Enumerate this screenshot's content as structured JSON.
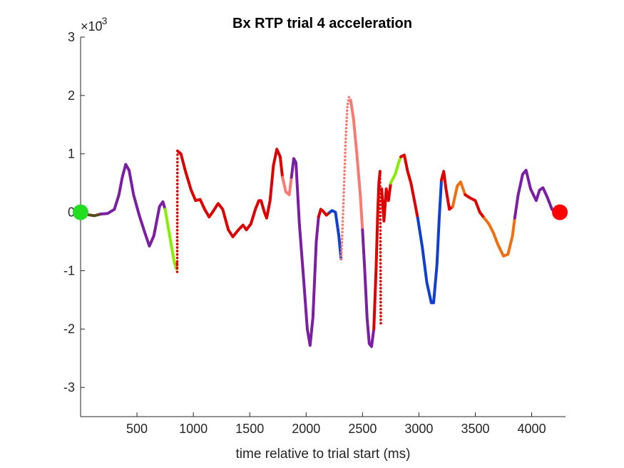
{
  "chart_data": {
    "type": "scatter",
    "title": "Bx  RTP trial 4 acceleration",
    "xlabel": "time relative to trial start (ms)",
    "ylabel": "",
    "y_exponent_label": "×10",
    "y_exponent_value": "-3",
    "y_scale_factor": 0.001,
    "xlim": [
      0,
      4300
    ],
    "ylim": [
      -3.5,
      3
    ],
    "x_ticks": [
      500,
      1000,
      1500,
      2000,
      2500,
      3000,
      3500,
      4000
    ],
    "x_tick_labels": [
      "500",
      "1000",
      "1500",
      "2000",
      "2500",
      "3000",
      "3500",
      "4000"
    ],
    "y_ticks": [
      3,
      2,
      1,
      0,
      -1,
      -2,
      -3
    ],
    "y_tick_labels": [
      "3",
      "2",
      "1",
      "0",
      "-1",
      "-2",
      "-3"
    ],
    "grid": false,
    "legend": "none",
    "colors": {
      "purple": "#7b1fa2",
      "brown": "#5b4a1a",
      "green": "#88ee00",
      "red": "#dd0000",
      "salmon": "#f77b72",
      "blue": "#1040d0",
      "orange": "#f07010",
      "start_marker": "#22dd22",
      "end_marker": "#ff0000"
    },
    "segments": [
      {
        "color": "brown",
        "dotted": false,
        "points": [
          [
            0,
            0.0
          ],
          [
            60,
            -0.04
          ],
          [
            120,
            -0.06
          ],
          [
            180,
            -0.03
          ]
        ]
      },
      {
        "color": "purple",
        "dotted": false,
        "points": [
          [
            180,
            -0.03
          ],
          [
            240,
            -0.02
          ],
          [
            300,
            0.05
          ],
          [
            340,
            0.3
          ],
          [
            370,
            0.6
          ],
          [
            400,
            0.82
          ],
          [
            430,
            0.72
          ],
          [
            470,
            0.3
          ],
          [
            520,
            -0.05
          ],
          [
            570,
            -0.35
          ],
          [
            610,
            -0.58
          ],
          [
            650,
            -0.4
          ],
          [
            700,
            0.1
          ],
          [
            730,
            0.18
          ],
          [
            750,
            0.05
          ]
        ]
      },
      {
        "color": "green",
        "dotted": false,
        "points": [
          [
            750,
            0.05
          ],
          [
            790,
            -0.4
          ],
          [
            830,
            -0.85
          ],
          [
            850,
            -0.97
          ]
        ]
      },
      {
        "color": "red",
        "dotted": true,
        "points": [
          [
            855,
            -0.88
          ],
          [
            857,
            -1.02
          ],
          [
            858,
            0.05
          ],
          [
            859,
            0.92
          ],
          [
            860,
            1.05
          ]
        ]
      },
      {
        "color": "red",
        "dotted": false,
        "points": [
          [
            860,
            1.05
          ],
          [
            890,
            1.0
          ],
          [
            930,
            0.7
          ],
          [
            980,
            0.38
          ],
          [
            1020,
            0.2
          ],
          [
            1060,
            0.22
          ],
          [
            1100,
            0.05
          ],
          [
            1140,
            -0.08
          ],
          [
            1170,
            0.0
          ],
          [
            1220,
            0.15
          ],
          [
            1260,
            0.05
          ],
          [
            1310,
            -0.3
          ],
          [
            1350,
            -0.42
          ],
          [
            1400,
            -0.3
          ],
          [
            1440,
            -0.22
          ],
          [
            1470,
            -0.3
          ],
          [
            1510,
            -0.2
          ],
          [
            1550,
            0.05
          ],
          [
            1580,
            0.2
          ],
          [
            1600,
            0.2
          ],
          [
            1630,
            0.0
          ],
          [
            1650,
            -0.1
          ],
          [
            1680,
            0.2
          ],
          [
            1710,
            0.8
          ],
          [
            1740,
            1.08
          ],
          [
            1770,
            0.95
          ],
          [
            1790,
            0.6
          ]
        ]
      },
      {
        "color": "salmon",
        "dotted": false,
        "points": [
          [
            1790,
            0.6
          ],
          [
            1820,
            0.35
          ],
          [
            1850,
            0.3
          ],
          [
            1870,
            0.6
          ]
        ]
      },
      {
        "color": "purple",
        "dotted": false,
        "points": [
          [
            1870,
            0.6
          ],
          [
            1890,
            0.92
          ],
          [
            1910,
            0.85
          ],
          [
            1940,
            -0.2
          ],
          [
            1980,
            -1.2
          ],
          [
            2010,
            -2.0
          ],
          [
            2035,
            -2.28
          ],
          [
            2060,
            -1.8
          ],
          [
            2090,
            -0.5
          ],
          [
            2110,
            -0.08
          ]
        ]
      },
      {
        "color": "red",
        "dotted": false,
        "points": [
          [
            2110,
            -0.08
          ],
          [
            2130,
            0.05
          ],
          [
            2150,
            0.02
          ],
          [
            2180,
            -0.05
          ],
          [
            2210,
            0.0
          ]
        ]
      },
      {
        "color": "blue",
        "dotted": false,
        "points": [
          [
            2210,
            0.0
          ],
          [
            2230,
            0.03
          ],
          [
            2260,
            0.0
          ],
          [
            2290,
            -0.4
          ],
          [
            2310,
            -0.8
          ]
        ]
      },
      {
        "color": "salmon",
        "dotted": true,
        "points": [
          [
            2310,
            -0.8
          ],
          [
            2320,
            -0.4
          ],
          [
            2335,
            0.4
          ],
          [
            2350,
            1.2
          ],
          [
            2365,
            1.8
          ],
          [
            2380,
            1.97
          ],
          [
            2395,
            1.92
          ]
        ]
      },
      {
        "color": "salmon",
        "dotted": false,
        "points": [
          [
            2395,
            1.92
          ],
          [
            2420,
            1.6
          ],
          [
            2450,
            1.0
          ],
          [
            2480,
            0.3
          ],
          [
            2500,
            -0.3
          ]
        ]
      },
      {
        "color": "purple",
        "dotted": false,
        "points": [
          [
            2500,
            -0.3
          ],
          [
            2520,
            -1.0
          ],
          [
            2540,
            -1.8
          ],
          [
            2560,
            -2.25
          ],
          [
            2580,
            -2.3
          ],
          [
            2600,
            -2.0
          ]
        ]
      },
      {
        "color": "red",
        "dotted": false,
        "points": [
          [
            2600,
            -2.0
          ],
          [
            2620,
            -1.0
          ],
          [
            2635,
            0.0
          ],
          [
            2645,
            0.5
          ],
          [
            2655,
            0.7
          ]
        ]
      },
      {
        "color": "red",
        "dotted": true,
        "points": [
          [
            2655,
            0.7
          ],
          [
            2658,
            0.0
          ],
          [
            2660,
            -1.0
          ],
          [
            2662,
            -1.9
          ]
        ]
      },
      {
        "color": "red",
        "dotted": false,
        "points": [
          [
            2670,
            0.4
          ],
          [
            2690,
            -0.15
          ],
          [
            2710,
            0.4
          ],
          [
            2730,
            0.2
          ],
          [
            2750,
            0.5
          ]
        ]
      },
      {
        "color": "green",
        "dotted": false,
        "points": [
          [
            2750,
            0.5
          ],
          [
            2790,
            0.65
          ],
          [
            2820,
            0.85
          ],
          [
            2840,
            0.95
          ]
        ]
      },
      {
        "color": "red",
        "dotted": false,
        "points": [
          [
            2840,
            0.95
          ],
          [
            2870,
            0.98
          ],
          [
            2900,
            0.7
          ],
          [
            2930,
            0.5
          ],
          [
            2960,
            0.2
          ],
          [
            2990,
            -0.1
          ]
        ]
      },
      {
        "color": "blue",
        "dotted": false,
        "points": [
          [
            2990,
            -0.1
          ],
          [
            3030,
            -0.6
          ],
          [
            3070,
            -1.2
          ],
          [
            3110,
            -1.55
          ],
          [
            3130,
            -1.55
          ],
          [
            3160,
            -0.9
          ],
          [
            3180,
            -0.1
          ],
          [
            3200,
            0.55
          ]
        ]
      },
      {
        "color": "red",
        "dotted": false,
        "points": [
          [
            3200,
            0.55
          ],
          [
            3220,
            0.7
          ],
          [
            3240,
            0.4
          ],
          [
            3270,
            0.05
          ],
          [
            3300,
            0.1
          ]
        ]
      },
      {
        "color": "orange",
        "dotted": false,
        "points": [
          [
            3300,
            0.1
          ],
          [
            3340,
            0.45
          ],
          [
            3370,
            0.52
          ],
          [
            3410,
            0.3
          ]
        ]
      },
      {
        "color": "red",
        "dotted": false,
        "points": [
          [
            3410,
            0.3
          ],
          [
            3450,
            0.25
          ],
          [
            3500,
            0.2
          ],
          [
            3540,
            0.0
          ],
          [
            3580,
            -0.1
          ]
        ]
      },
      {
        "color": "orange",
        "dotted": false,
        "points": [
          [
            3580,
            -0.1
          ],
          [
            3620,
            -0.2
          ],
          [
            3660,
            -0.35
          ],
          [
            3700,
            -0.55
          ],
          [
            3750,
            -0.75
          ],
          [
            3790,
            -0.72
          ],
          [
            3830,
            -0.4
          ],
          [
            3850,
            -0.1
          ]
        ]
      },
      {
        "color": "purple",
        "dotted": false,
        "points": [
          [
            3850,
            -0.1
          ],
          [
            3880,
            0.3
          ],
          [
            3920,
            0.65
          ],
          [
            3950,
            0.72
          ],
          [
            3990,
            0.4
          ],
          [
            4040,
            0.2
          ],
          [
            4070,
            0.38
          ],
          [
            4100,
            0.42
          ],
          [
            4140,
            0.25
          ],
          [
            4180,
            0.05
          ],
          [
            4220,
            -0.02
          ],
          [
            4250,
            0.0
          ]
        ]
      }
    ],
    "markers": [
      {
        "name": "start",
        "x": 0,
        "y": 0,
        "color": "start_marker"
      },
      {
        "name": "end",
        "x": 4250,
        "y": 0,
        "color": "end_marker"
      }
    ]
  }
}
